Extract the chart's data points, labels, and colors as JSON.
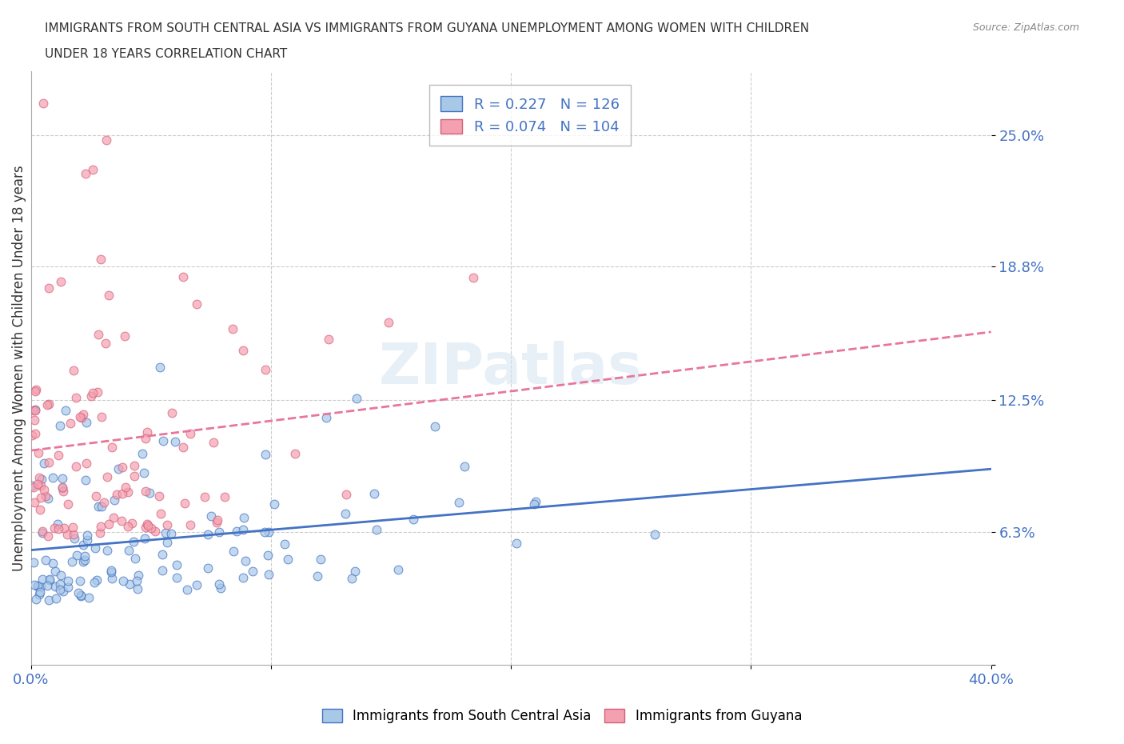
{
  "title_line1": "IMMIGRANTS FROM SOUTH CENTRAL ASIA VS IMMIGRANTS FROM GUYANA UNEMPLOYMENT AMONG WOMEN WITH CHILDREN",
  "title_line2": "UNDER 18 YEARS CORRELATION CHART",
  "source": "Source: ZipAtlas.com",
  "ylabel": "Unemployment Among Women with Children Under 18 years",
  "xlim": [
    0.0,
    0.4
  ],
  "ylim": [
    0.0,
    0.28
  ],
  "ytick_vals": [
    0.0,
    0.063,
    0.125,
    0.188,
    0.25
  ],
  "ytick_labels": [
    "",
    "6.3%",
    "12.5%",
    "18.8%",
    "25.0%"
  ],
  "xtick_vals": [
    0.0,
    0.1,
    0.2,
    0.3,
    0.4
  ],
  "xtick_labels": [
    "0.0%",
    "",
    "",
    "",
    "40.0%"
  ],
  "legend_r1": "R = 0.227",
  "legend_n1": "N = 126",
  "legend_r2": "R = 0.074",
  "legend_n2": "N = 104",
  "color_asia_fill": "#a8c8e8",
  "color_asia_edge": "#4472c4",
  "color_guyana_fill": "#f4a0b0",
  "color_guyana_edge": "#d4607a",
  "color_asia_line": "#4472c4",
  "color_guyana_line": "#e8769a",
  "watermark": "ZIPatlas",
  "legend_label1": "Immigrants from South Central Asia",
  "legend_label2": "Immigrants from Guyana"
}
